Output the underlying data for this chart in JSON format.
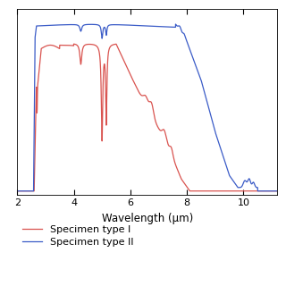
{
  "xlabel": "Wavelength (μm)",
  "xlim": [
    2,
    11.2
  ],
  "ylim": [
    -0.02,
    1.05
  ],
  "xticks": [
    2,
    4,
    6,
    8,
    10
  ],
  "color_type1": "#d9534f",
  "color_type2": "#3a5bc7",
  "legend_type1": "Specimen type I",
  "legend_type2": "Specimen type II",
  "linewidth": 0.9,
  "background": "#ffffff"
}
